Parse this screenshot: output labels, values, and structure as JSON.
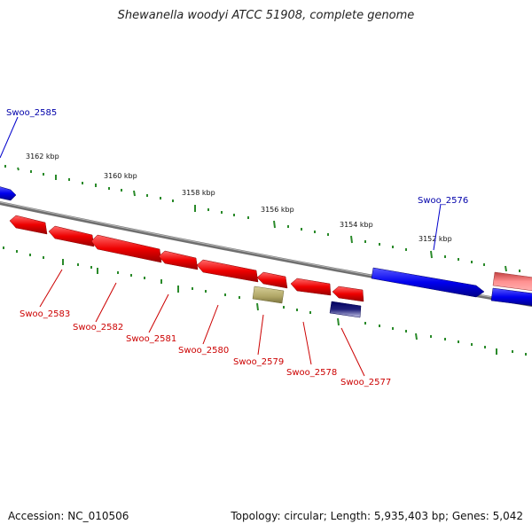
{
  "header": {
    "title": "Shewanella woodyi ATCC 51908, complete genome"
  },
  "footer": {
    "accession": "Accession: NC_010506",
    "summary": "Topology: circular; Length: 5,935,403 bp; Genes: 5,042"
  },
  "scale": {
    "ticks": [
      "3162 kbp",
      "3160 kbp",
      "3158 kbp",
      "3156 kbp",
      "3154 kbp",
      "3152 kbp"
    ]
  },
  "genes": {
    "swoo_2585": "Swoo_2585",
    "swoo_2583": "Swoo_2583",
    "swoo_2582": "Swoo_2582",
    "swoo_2581": "Swoo_2581",
    "swoo_2580": "Swoo_2580",
    "swoo_2579": "Swoo_2579",
    "swoo_2578": "Swoo_2578",
    "swoo_2577": "Swoo_2577",
    "swoo_2576": "Swoo_2576"
  },
  "colors": {
    "forward_strand": "#0000ff",
    "reverse_strand": "#ff0000",
    "pseudogene": "#b8b07a",
    "rna": "#1a1a6e",
    "backbone": "#808080",
    "tick": "#2a8a2a"
  }
}
